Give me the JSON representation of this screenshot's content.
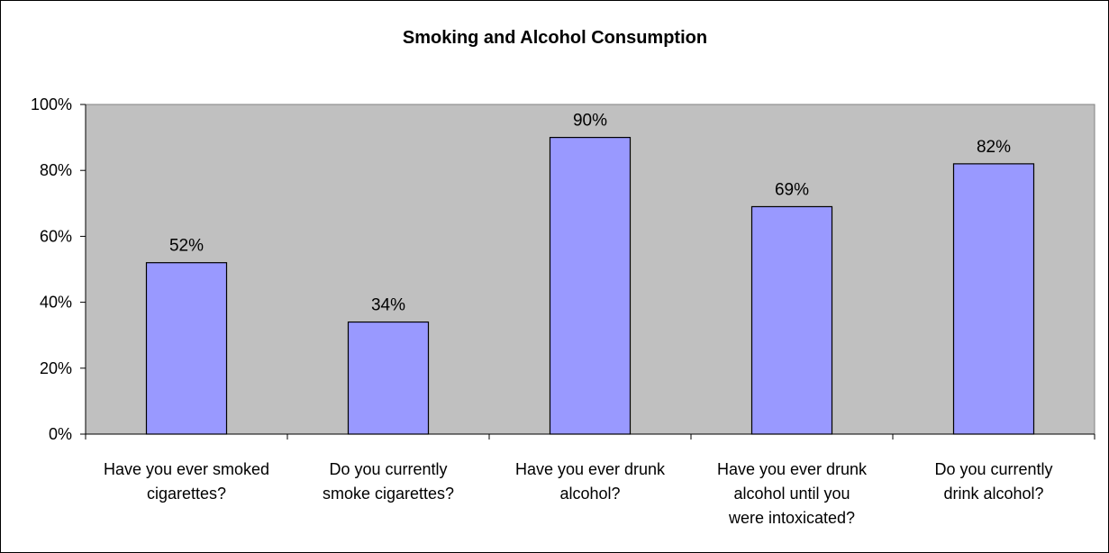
{
  "chart_data": {
    "type": "bar",
    "title": "Smoking and Alcohol Consumption",
    "xlabel": "",
    "ylabel": "",
    "ylim": [
      0,
      100
    ],
    "y_ticks": [
      "0%",
      "20%",
      "40%",
      "60%",
      "80%",
      "100%"
    ],
    "categories": [
      [
        "Have you ever smoked",
        "cigarettes?"
      ],
      [
        "Do you currently",
        "smoke cigarettes?"
      ],
      [
        "Have you ever drunk",
        "alcohol?"
      ],
      [
        "Have you ever drunk",
        "alcohol until you",
        "were intoxicated?"
      ],
      [
        "Do you currently",
        "drink alcohol?"
      ]
    ],
    "values": [
      52,
      34,
      90,
      69,
      82
    ],
    "data_labels": [
      "52%",
      "34%",
      "90%",
      "69%",
      "82%"
    ],
    "grid": false,
    "legend": "none",
    "colors": {
      "bar_fill": "#9999ff",
      "plot_background": "#c0c0c0",
      "axis": "#000000"
    }
  }
}
